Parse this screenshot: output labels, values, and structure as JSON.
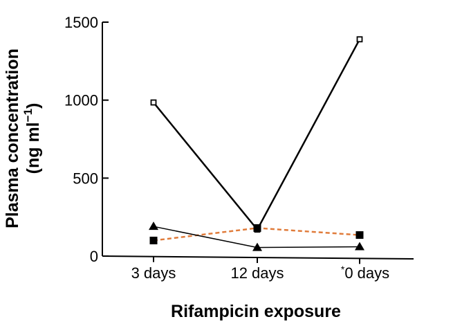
{
  "chart_data": {
    "type": "line",
    "xlabel": "Rifampicin exposure",
    "ylabel": "Plasma concentration",
    "ylabel_unit_prefix": "(ng ml",
    "ylabel_unit_exp": "−1",
    "ylabel_unit_suffix": ")",
    "categories": [
      "3 days",
      "12 days",
      "0 days"
    ],
    "category_marks": [
      "",
      "",
      "*"
    ],
    "ylim": [
      0,
      1500
    ],
    "yticks": [
      0,
      500,
      1000,
      1500
    ],
    "grid": false,
    "legend": "none",
    "series": [
      {
        "values": [
          985,
          170,
          1390
        ],
        "marker": "open-square",
        "line_style": "solid-thick",
        "color": "#000000"
      },
      {
        "values": [
          100,
          180,
          135
        ],
        "marker": "filled-square",
        "line_style": "dashed",
        "color": "#e07b3a"
      },
      {
        "values": [
          190,
          55,
          60
        ],
        "marker": "filled-triangle",
        "line_style": "solid-thin",
        "color": "#000000"
      }
    ]
  }
}
